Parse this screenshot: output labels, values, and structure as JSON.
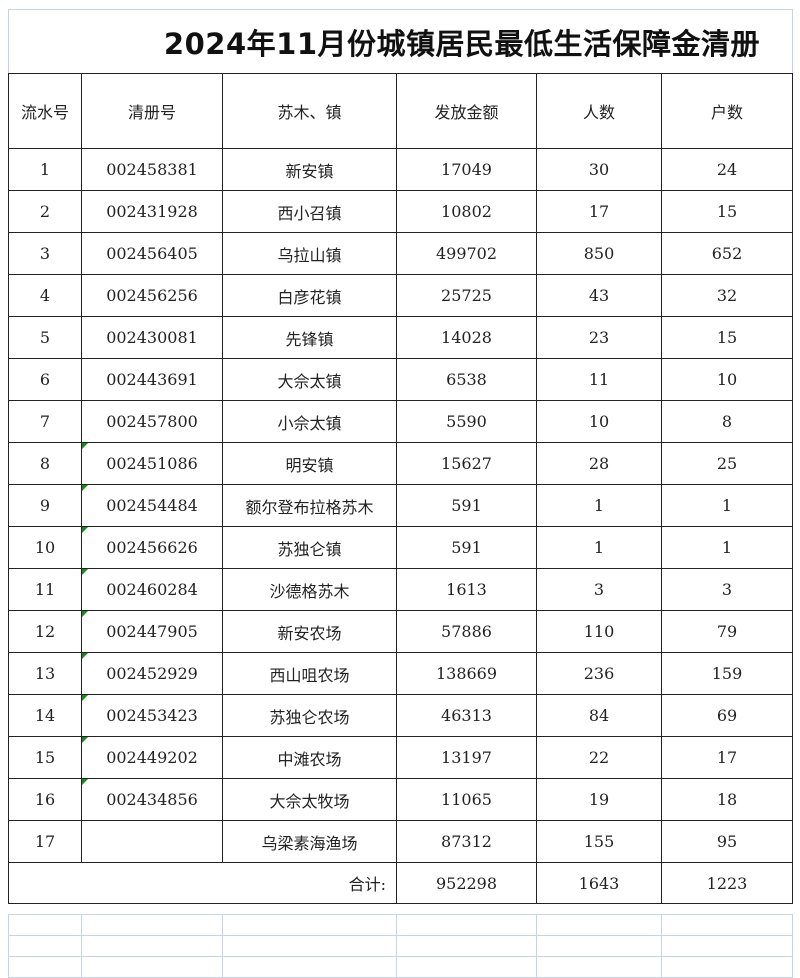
{
  "title": "2024年11月份城镇居民最低生活保障金清册",
  "headers": [
    "流水号",
    "清册号",
    "苏木、镇",
    "发放金额",
    "人数",
    "户数"
  ],
  "rows": [
    {
      "no": "1",
      "id": "002458381",
      "town": "新安镇",
      "amount": "17049",
      "people": "30",
      "households": "24"
    },
    {
      "no": "2",
      "id": "002431928",
      "town": "西小召镇",
      "amount": "10802",
      "people": "17",
      "households": "15"
    },
    {
      "no": "3",
      "id": "002456405",
      "town": "乌拉山镇",
      "amount": "499702",
      "people": "850",
      "households": "652"
    },
    {
      "no": "4",
      "id": "002456256",
      "town": "白彦花镇",
      "amount": "25725",
      "people": "43",
      "households": "32"
    },
    {
      "no": "5",
      "id": "002430081",
      "town": "先锋镇",
      "amount": "14028",
      "people": "23",
      "households": "15"
    },
    {
      "no": "6",
      "id": "002443691",
      "town": "大佘太镇",
      "amount": "6538",
      "people": "11",
      "households": "10"
    },
    {
      "no": "7",
      "id": "002457800",
      "town": "小佘太镇",
      "amount": "5590",
      "people": "10",
      "households": "8"
    },
    {
      "no": "8",
      "id": "002451086",
      "town": "明安镇",
      "amount": "15627",
      "people": "28",
      "households": "25"
    },
    {
      "no": "9",
      "id": "002454484",
      "town": "额尔登布拉格苏木",
      "amount": "591",
      "people": "1",
      "households": "1"
    },
    {
      "no": "10",
      "id": "002456626",
      "town": "苏独仑镇",
      "amount": "591",
      "people": "1",
      "households": "1"
    },
    {
      "no": "11",
      "id": "002460284",
      "town": "沙德格苏木",
      "amount": "1613",
      "people": "3",
      "households": "3"
    },
    {
      "no": "12",
      "id": "002447905",
      "town": "新安农场",
      "amount": "57886",
      "people": "110",
      "households": "79"
    },
    {
      "no": "13",
      "id": "002452929",
      "town": "西山咀农场",
      "amount": "138669",
      "people": "236",
      "households": "159"
    },
    {
      "no": "14",
      "id": "002453423",
      "town": "苏独仑农场",
      "amount": "46313",
      "people": "84",
      "households": "69"
    },
    {
      "no": "15",
      "id": "002449202",
      "town": "中滩农场",
      "amount": "13197",
      "people": "22",
      "households": "17"
    },
    {
      "no": "16",
      "id": "002434856",
      "town": "大佘太牧场",
      "amount": "11065",
      "people": "19",
      "households": "18"
    },
    {
      "no": "17",
      "id": "",
      "town": "乌梁素海渔场",
      "amount": "87312",
      "people": "155",
      "households": "95"
    }
  ],
  "total": {
    "label": "合计:",
    "amount": "952298",
    "people": "1643",
    "households": "1223"
  },
  "colors": {
    "border": "#222222",
    "gridline": "#c9d3e6",
    "comment_marker": "#1a8a1a"
  }
}
